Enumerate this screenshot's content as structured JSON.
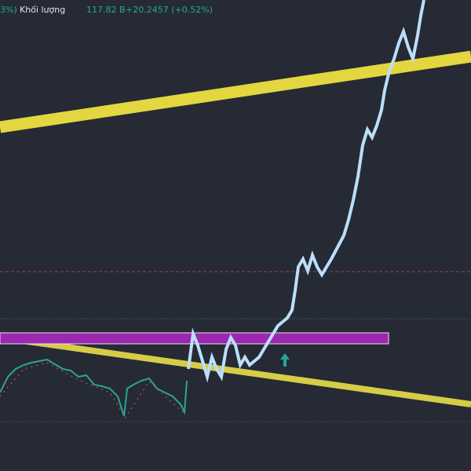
{
  "header": {
    "prev_change": "3%)",
    "volume_label": "Khối lượng",
    "volume_value": "117.82 B",
    "change": "+20.2457 (+0.52%)"
  }
}
